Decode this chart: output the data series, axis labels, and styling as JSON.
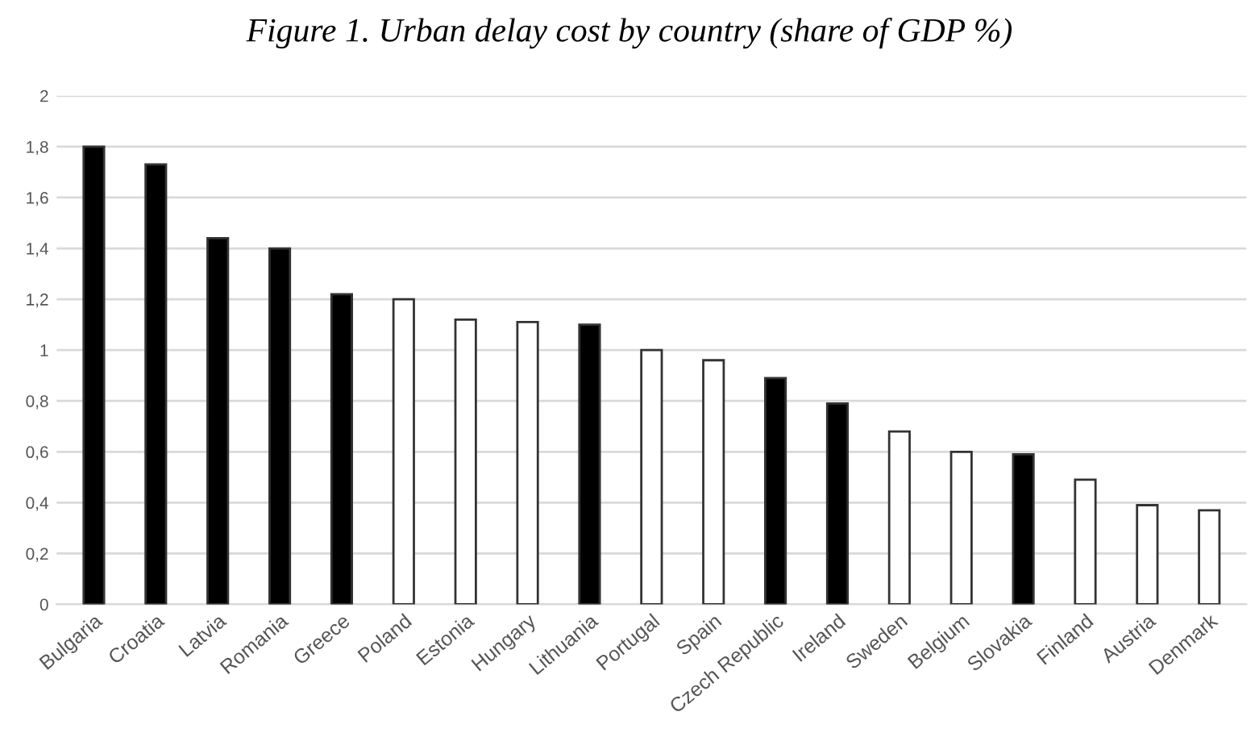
{
  "chart_data": {
    "type": "bar",
    "title": "Figure 1. Urban delay cost by country (share of GDP %)",
    "categories": [
      "Bulgaria",
      "Croatia",
      "Latvia",
      "Romania",
      "Greece",
      "Poland",
      "Estonia",
      "Hungary",
      "Lithuania",
      "Portugal",
      "Spain",
      "Czech Republic",
      "Ireland",
      "Sweden",
      "Belgium",
      "Slovakia",
      "Finland",
      "Austria",
      "Denmark"
    ],
    "values": [
      1.8,
      1.73,
      1.44,
      1.4,
      1.22,
      1.2,
      1.12,
      1.11,
      1.1,
      1.0,
      0.96,
      0.89,
      0.79,
      0.68,
      0.6,
      0.59,
      0.49,
      0.39,
      0.37
    ],
    "colors": [
      "#000000",
      "#000000",
      "#000000",
      "#000000",
      "#000000",
      "#ffffff",
      "#ffffff",
      "#ffffff",
      "#000000",
      "#ffffff",
      "#ffffff",
      "#000000",
      "#000000",
      "#ffffff",
      "#ffffff",
      "#000000",
      "#ffffff",
      "#ffffff",
      "#ffffff"
    ],
    "ylim": [
      0,
      2
    ],
    "yticks": [
      0,
      {
        "value": 0.2,
        "label": "0,2"
      },
      {
        "value": 0.4,
        "label": "0,4"
      },
      {
        "value": 0.6,
        "label": "0,6"
      },
      {
        "value": 0.8,
        "label": "0,8"
      },
      1,
      {
        "value": 1.2,
        "label": "1,2"
      },
      {
        "value": 1.4,
        "label": "1,4"
      },
      {
        "value": 1.6,
        "label": "1,6"
      },
      {
        "value": 1.8,
        "label": "1,8"
      },
      2
    ],
    "grid": "y"
  }
}
